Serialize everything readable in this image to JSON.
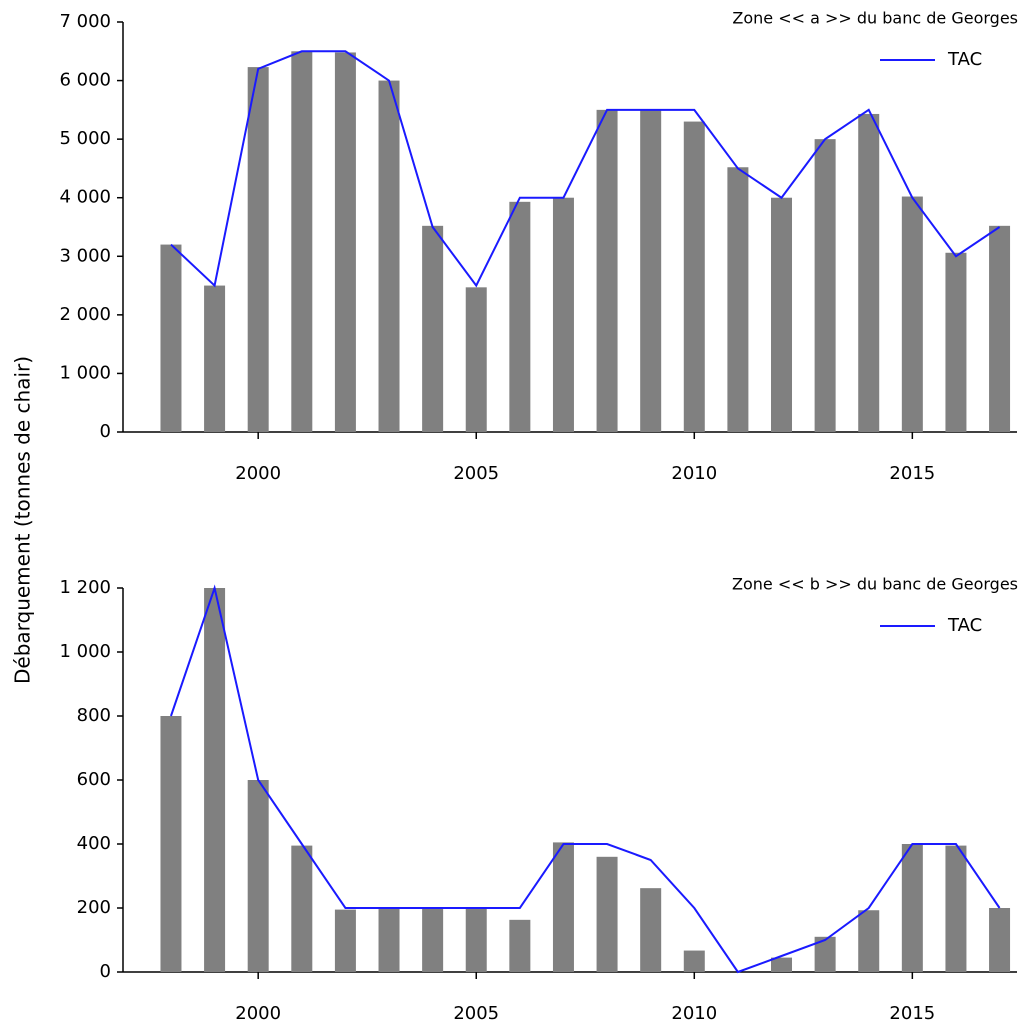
{
  "chart_data": [
    {
      "type": "bar",
      "title": "Zone << a >> du banc de Georges",
      "ylabel": "Débarquement (tonnes de chair)",
      "x": [
        1998,
        1999,
        2000,
        2001,
        2002,
        2003,
        2004,
        2005,
        2006,
        2007,
        2008,
        2009,
        2010,
        2011,
        2012,
        2013,
        2014,
        2015,
        2016,
        2017
      ],
      "series": [
        {
          "type": "bar",
          "color": "#808080",
          "values": [
            3200,
            2500,
            6230,
            6500,
            6480,
            6000,
            3520,
            2470,
            3930,
            4000,
            5500,
            5500,
            5300,
            4520,
            4000,
            5000,
            5430,
            4020,
            3060,
            3520
          ]
        },
        {
          "type": "line",
          "name": "TAC",
          "color": "#1a1aff",
          "values": [
            3200,
            2500,
            6200,
            6500,
            6500,
            6000,
            3500,
            2500,
            4000,
            4000,
            5500,
            5500,
            5500,
            4500,
            4000,
            5000,
            5500,
            4000,
            3000,
            3500
          ]
        }
      ],
      "xlim": [
        1996.9,
        2017.4
      ],
      "xticks": [
        2000,
        2005,
        2010,
        2015
      ],
      "ylim": [
        0,
        7000
      ],
      "yticks": [
        0,
        {
          "value": 1000,
          "label": "1 000"
        },
        {
          "value": 2000,
          "label": "2 000"
        },
        {
          "value": 3000,
          "label": "3 000"
        },
        {
          "value": 4000,
          "label": "4 000"
        },
        {
          "value": 5000,
          "label": "5 000"
        },
        {
          "value": 6000,
          "label": "6 000"
        },
        {
          "value": 7000,
          "label": "7 000"
        }
      ],
      "legend": "upper right"
    },
    {
      "type": "bar",
      "title": "Zone << b >> du banc de Georges",
      "x": [
        1998,
        1999,
        2000,
        2001,
        2002,
        2003,
        2004,
        2005,
        2006,
        2007,
        2008,
        2009,
        2010,
        2011,
        2012,
        2013,
        2014,
        2015,
        2016,
        2017
      ],
      "series": [
        {
          "type": "bar",
          "color": "#808080",
          "values": [
            800,
            1200,
            600,
            395,
            195,
            200,
            200,
            200,
            163,
            405,
            360,
            262,
            67,
            0,
            45,
            110,
            193,
            400,
            395,
            200
          ]
        },
        {
          "type": "line",
          "name": "TAC",
          "color": "#1a1aff",
          "values": [
            800,
            1200,
            600,
            400,
            200,
            200,
            200,
            200,
            200,
            400,
            400,
            350,
            200,
            0,
            50,
            100,
            200,
            400,
            400,
            200
          ]
        }
      ],
      "xlim": [
        1996.9,
        2017.4
      ],
      "xticks": [
        2000,
        2005,
        2010,
        2015
      ],
      "ylim": [
        0,
        1200
      ],
      "yticks": [
        0,
        200,
        400,
        600,
        800,
        {
          "value": 1000,
          "label": "1 000"
        },
        {
          "value": 1200,
          "label": "1 200"
        }
      ],
      "legend": "upper right"
    }
  ]
}
